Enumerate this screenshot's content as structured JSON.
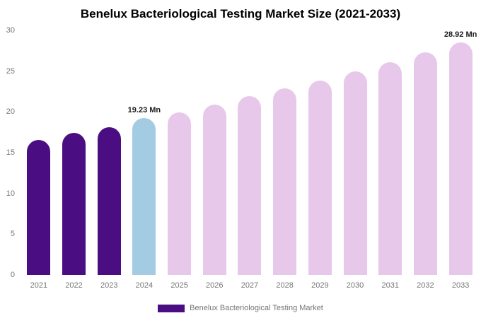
{
  "chart_data": {
    "type": "bar",
    "title": "Benelux Bacteriological Testing Market Size (2021-2033)",
    "categories": [
      "2021",
      "2022",
      "2023",
      "2024",
      "2025",
      "2026",
      "2027",
      "2028",
      "2029",
      "2030",
      "2031",
      "2032",
      "2033"
    ],
    "values": [
      16.55,
      17.4,
      18.15,
      19.23,
      19.95,
      20.9,
      21.95,
      22.85,
      23.85,
      25.0,
      26.1,
      27.35,
      28.92
    ],
    "bar_colors": [
      "#4a0e82",
      "#4a0e82",
      "#4a0e82",
      "#a3cce3",
      "#e8c8ea",
      "#e8c8ea",
      "#e8c8ea",
      "#e8c8ea",
      "#e8c8ea",
      "#e8c8ea",
      "#e8c8ea",
      "#e8c8ea",
      "#e8c8ea"
    ],
    "annotations": [
      {
        "index": 3,
        "text": "19.23 Mn"
      },
      {
        "index": 12,
        "text": "28.92 Mn"
      }
    ],
    "ylim": [
      0,
      30
    ],
    "yticks": [
      0,
      5,
      10,
      15,
      20,
      25,
      30
    ],
    "grid": false,
    "legend": "Benelux Bacteriological Testing Market",
    "legend_color": "#4a0e82",
    "legend_position": "bottom",
    "xlabel": "",
    "ylabel": ""
  }
}
